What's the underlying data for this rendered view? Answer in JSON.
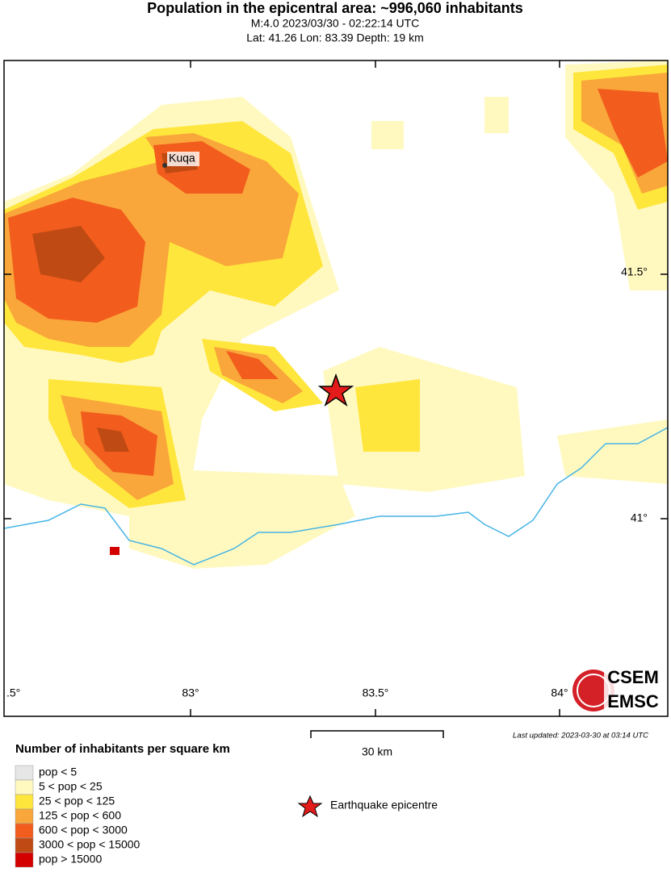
{
  "header": {
    "title": "Population in the epicentral area: ~996,060 inhabitants",
    "line1": "M:4.0 2023/03/30 - 02:22:14 UTC",
    "line2": "Lat: 41.26 Lon: 83.39 Depth: 19 km"
  },
  "map": {
    "lat_labels": [
      "41.5°",
      "41°"
    ],
    "lon_labels": [
      ".5°",
      "83°",
      "83.5°",
      "84°"
    ],
    "place": "Kuqa",
    "scale": "30 km",
    "updated": "Last updated: 2023-03-30 at 03:14 UTC",
    "logo": [
      "CSEM",
      "EMSC"
    ]
  },
  "legend": {
    "title": "Number of inhabitants per square km",
    "items": [
      {
        "label": "pop < 5",
        "color": "#e6e6e6"
      },
      {
        "label": "5 < pop < 25",
        "color": "#fff9c0"
      },
      {
        "label": "25 < pop < 125",
        "color": "#ffe63c"
      },
      {
        "label": "125 < pop < 600",
        "color": "#f9a63a"
      },
      {
        "label": "600 < pop < 3000",
        "color": "#f25c1c"
      },
      {
        "label": "3000 < pop < 15000",
        "color": "#bf4a14"
      },
      {
        "label": "pop > 15000",
        "color": "#d40000"
      }
    ],
    "epicentre": "Earthquake epicentre"
  }
}
